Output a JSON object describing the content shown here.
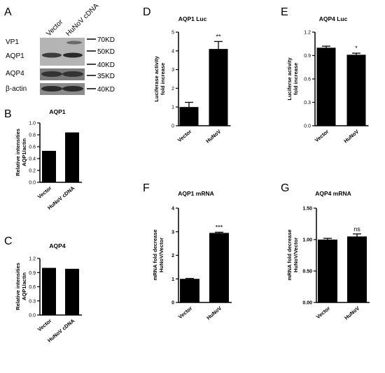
{
  "panel_letters": {
    "A": "A",
    "B": "B",
    "C": "C",
    "D": "D",
    "E": "E",
    "F": "F",
    "G": "G"
  },
  "blot": {
    "lanes": [
      "Vector",
      "HuNoV cDNA"
    ],
    "rows": [
      {
        "label": "VP1",
        "marker": "70KD"
      },
      {
        "label": "AQP1",
        "marker": "50KD"
      },
      {
        "label": "AQP4",
        "marker": "35KD"
      },
      {
        "label": "β-actin",
        "marker": "40KD"
      }
    ],
    "extra_marker": "40KD"
  },
  "chart_data": [
    {
      "id": "B",
      "type": "bar",
      "title": "AQP1",
      "ylabel_lines": [
        "Relative intensities",
        "AQP1/actin"
      ],
      "categories": [
        "Vector",
        "HuNoV cDNA"
      ],
      "values": [
        0.53,
        0.84
      ],
      "ylim": [
        0,
        1.0
      ],
      "yticks": [
        "0.0",
        "0.2",
        "0.4",
        "0.6",
        "0.8",
        "1.0"
      ],
      "error_bars": false,
      "bold_ticks": false
    },
    {
      "id": "C",
      "type": "bar",
      "title": "AQP4",
      "ylabel_lines": [
        "Relative intensities",
        "AQP1/actin"
      ],
      "categories": [
        "Vector",
        "HuNoV cDNA"
      ],
      "values": [
        1.0,
        0.98
      ],
      "ylim": [
        0,
        1.2
      ],
      "yticks": [
        "0.0",
        "0.3",
        "0.6",
        "0.9",
        "1.2"
      ],
      "error_bars": false,
      "bold_ticks": false
    },
    {
      "id": "D",
      "type": "bar",
      "title": "AQP1 Luc",
      "ylabel_lines": [
        "Luciferase activity",
        "fold increase"
      ],
      "categories": [
        "Vector",
        "HuNoV"
      ],
      "values": [
        1.0,
        4.1
      ],
      "errors": [
        0.25,
        0.4
      ],
      "significance": [
        "",
        "**"
      ],
      "ylim": [
        0,
        5
      ],
      "yticks": [
        "0",
        "1",
        "2",
        "3",
        "4",
        "5"
      ],
      "error_bars": true,
      "bold_ticks": false
    },
    {
      "id": "E",
      "type": "bar",
      "title": "AQP4 Luc",
      "ylabel_lines": [
        "Luciferse activity",
        "fold increase"
      ],
      "categories": [
        "Vector",
        "HuNoV"
      ],
      "values": [
        1.0,
        0.91
      ],
      "errors": [
        0.02,
        0.02
      ],
      "significance": [
        "",
        "*"
      ],
      "ylim": [
        0,
        1.2
      ],
      "yticks": [
        "0.0",
        "0.3",
        "0.6",
        "0.9",
        "1.2"
      ],
      "error_bars": true,
      "bold_ticks": false
    },
    {
      "id": "F",
      "type": "bar",
      "title": "AQP1 mRNA",
      "ylabel_lines": [
        "mRNA fold decrease",
        "HuNoV/Vector"
      ],
      "categories": [
        "Vector",
        "HuNoV"
      ],
      "values": [
        1.0,
        2.95
      ],
      "errors": [
        0.02,
        0.03
      ],
      "significance": [
        "",
        "***"
      ],
      "ylim": [
        0,
        4
      ],
      "yticks": [
        "0",
        "1",
        "2",
        "3",
        "4"
      ],
      "error_bars": true,
      "bold_ticks": true
    },
    {
      "id": "G",
      "type": "bar",
      "title": "AQP4 mRNA",
      "ylabel_lines": [
        "mRNA fold decrease",
        "HuNoV/Vector"
      ],
      "categories": [
        "Vector",
        "HuNoV"
      ],
      "values": [
        1.0,
        1.05
      ],
      "errors": [
        0.02,
        0.04
      ],
      "significance": [
        "",
        "ns"
      ],
      "ylim": [
        0,
        1.5
      ],
      "yticks": [
        "0.00",
        "0.50",
        "1.00",
        "1.50"
      ],
      "error_bars": true,
      "bold_ticks": true
    }
  ]
}
